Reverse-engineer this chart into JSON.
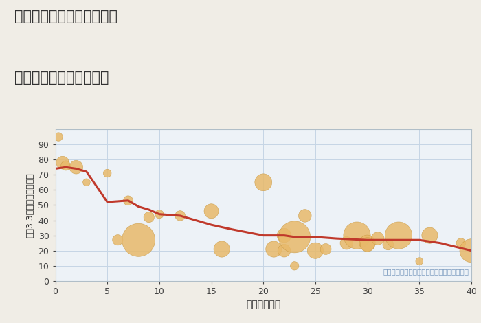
{
  "title_line1": "三重県津市河芸町久知野の",
  "title_line2": "築年数別中古戸建て価格",
  "xlabel": "築年数（年）",
  "ylabel": "平（3.3㎡）単価（万円）",
  "background_color": "#f0ede6",
  "plot_bg_color": "#edf2f7",
  "grid_color": "#c5d5e5",
  "annotation": "円の大きさは、取引のあった物件面積を示す",
  "annotation_color": "#7a9abf",
  "xlim": [
    0,
    40
  ],
  "ylim": [
    0,
    100
  ],
  "xticks": [
    0,
    5,
    10,
    15,
    20,
    25,
    30,
    35,
    40
  ],
  "yticks": [
    0,
    10,
    20,
    30,
    40,
    50,
    60,
    70,
    80,
    90
  ],
  "line_color": "#c0392b",
  "line_width": 2.2,
  "bubble_color": "#e8b96a",
  "bubble_edge_color": "#c89840",
  "bubble_alpha": 0.85,
  "scatter_x": [
    0.3,
    0.7,
    1,
    2,
    3,
    5,
    6,
    7,
    8,
    9,
    10,
    12,
    15,
    16,
    20,
    21,
    22,
    22,
    23,
    23,
    24,
    25,
    26,
    28,
    29,
    30,
    30,
    31,
    32,
    33,
    35,
    36,
    39,
    40
  ],
  "scatter_y": [
    95,
    78,
    76,
    75,
    65,
    71,
    27,
    53,
    27,
    42,
    44,
    43,
    46,
    21,
    65,
    21,
    30,
    20,
    29,
    10,
    43,
    20,
    21,
    25,
    30,
    25,
    24,
    28,
    24,
    30,
    13,
    30,
    25,
    20
  ],
  "scatter_size": [
    80,
    180,
    100,
    200,
    60,
    70,
    120,
    100,
    1200,
    120,
    80,
    110,
    230,
    280,
    320,
    280,
    220,
    180,
    1100,
    80,
    180,
    280,
    130,
    180,
    800,
    280,
    220,
    180,
    130,
    800,
    60,
    280,
    100,
    600
  ],
  "line_x": [
    0,
    1,
    2,
    3,
    5,
    7,
    8,
    9,
    10,
    12,
    15,
    17,
    20,
    22,
    23,
    25,
    27,
    30,
    33,
    35,
    37,
    40
  ],
  "line_y": [
    74,
    75,
    74,
    72,
    52,
    53,
    49,
    47,
    44,
    43,
    37,
    34,
    30,
    30,
    29,
    29,
    28,
    27,
    27,
    27,
    25,
    20
  ]
}
